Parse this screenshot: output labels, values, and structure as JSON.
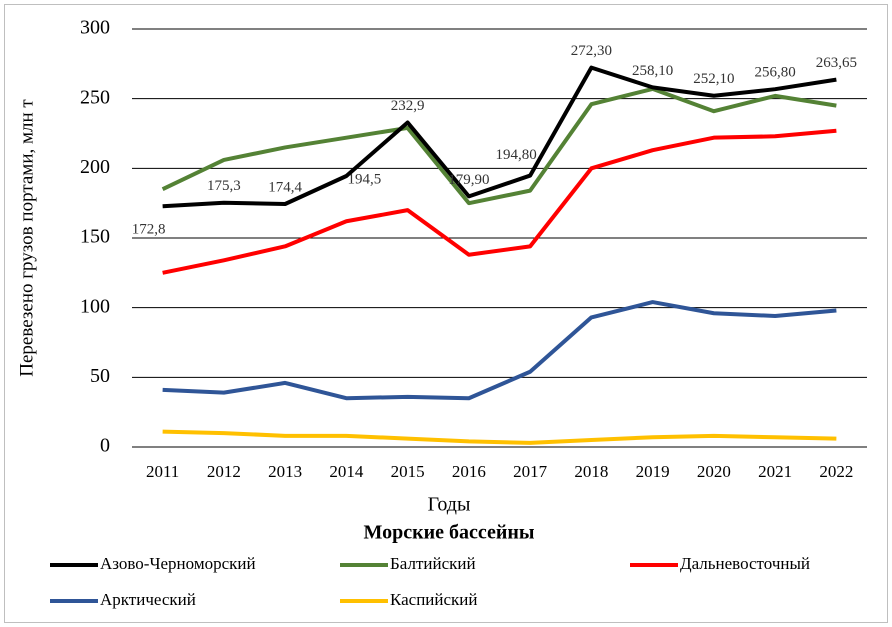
{
  "chart_data": {
    "type": "line",
    "x_label": "Годы",
    "y_label": "Перевезено грузов портами, млн т",
    "legend_title": "Морские бассейны",
    "legend": "bottom",
    "grid": true,
    "categories": [
      "2011",
      "2012",
      "2013",
      "2014",
      "2015",
      "2016",
      "2017",
      "2018",
      "2019",
      "2020",
      "2021",
      "2022"
    ],
    "ylim": [
      0,
      300
    ],
    "yticks": [
      0,
      50,
      100,
      150,
      200,
      250,
      300
    ],
    "series": [
      {
        "name": "Азово-Черноморский",
        "color": "#000000",
        "values": [
          172.8,
          175.3,
          174.4,
          194.5,
          232.9,
          179.9,
          194.8,
          272.3,
          258.1,
          252.1,
          256.8,
          263.65
        ],
        "value_labels": [
          "172,8",
          "175,3",
          "174,4",
          "194,5",
          "232,9",
          "179,90",
          "194,80",
          "272,30",
          "258,10",
          "252,10",
          "256,80",
          "263,65"
        ]
      },
      {
        "name": "Балтийский",
        "color": "#548235",
        "values": [
          185,
          206,
          215,
          222,
          229,
          175,
          184,
          246,
          257,
          241,
          252,
          245
        ]
      },
      {
        "name": "Дальневосточный",
        "color": "#ff0000",
        "values": [
          125,
          134,
          144,
          162,
          170,
          138,
          144,
          200,
          213,
          222,
          223,
          227
        ]
      },
      {
        "name": "Арктический",
        "color": "#2f5597",
        "values": [
          41,
          39,
          46,
          35,
          36,
          35,
          54,
          93,
          104,
          96,
          94,
          98
        ]
      },
      {
        "name": "Каспийский",
        "color": "#ffc000",
        "values": [
          11,
          10,
          8,
          8,
          6,
          4,
          3,
          5,
          7,
          8,
          7,
          6
        ]
      }
    ]
  }
}
